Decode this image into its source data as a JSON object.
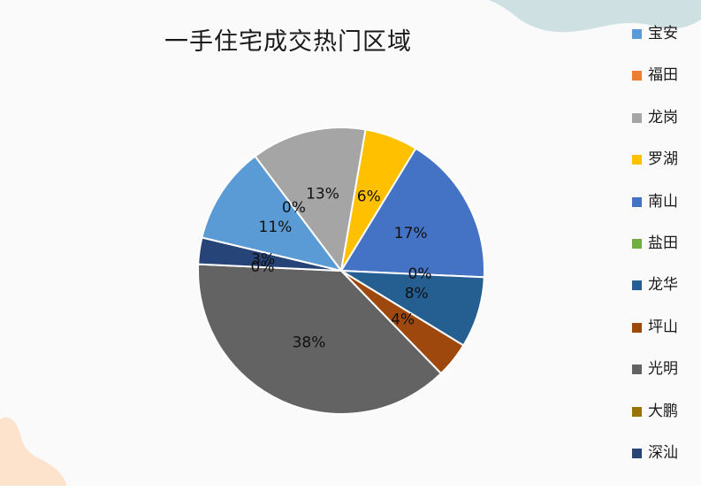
{
  "chart_data": {
    "type": "pie",
    "title": "一手住宅成交热门区域",
    "categories": [
      "宝安",
      "福田",
      "龙岗",
      "罗湖",
      "南山",
      "盐田",
      "龙华",
      "坪山",
      "光明",
      "大鹏",
      "深汕"
    ],
    "values": [
      11,
      0,
      13,
      6,
      17,
      0,
      8,
      4,
      38,
      0,
      3
    ],
    "data_labels": [
      "11%",
      "0%",
      "13%",
      "6%",
      "17%",
      "0%",
      "8%",
      "4%",
      "38%",
      "0%",
      "3%"
    ],
    "colors": [
      "#5b9bd5",
      "#ed7d31",
      "#a5a5a5",
      "#ffc000",
      "#4472c4",
      "#70ad47",
      "#255e91",
      "#9e480e",
      "#636363",
      "#997300",
      "#264478"
    ],
    "start_category": "龙岗",
    "legend_position": "right"
  },
  "decor": {
    "top_blob_color": "#cfe0e3",
    "bottom_blob_color": "#fde3cc"
  }
}
